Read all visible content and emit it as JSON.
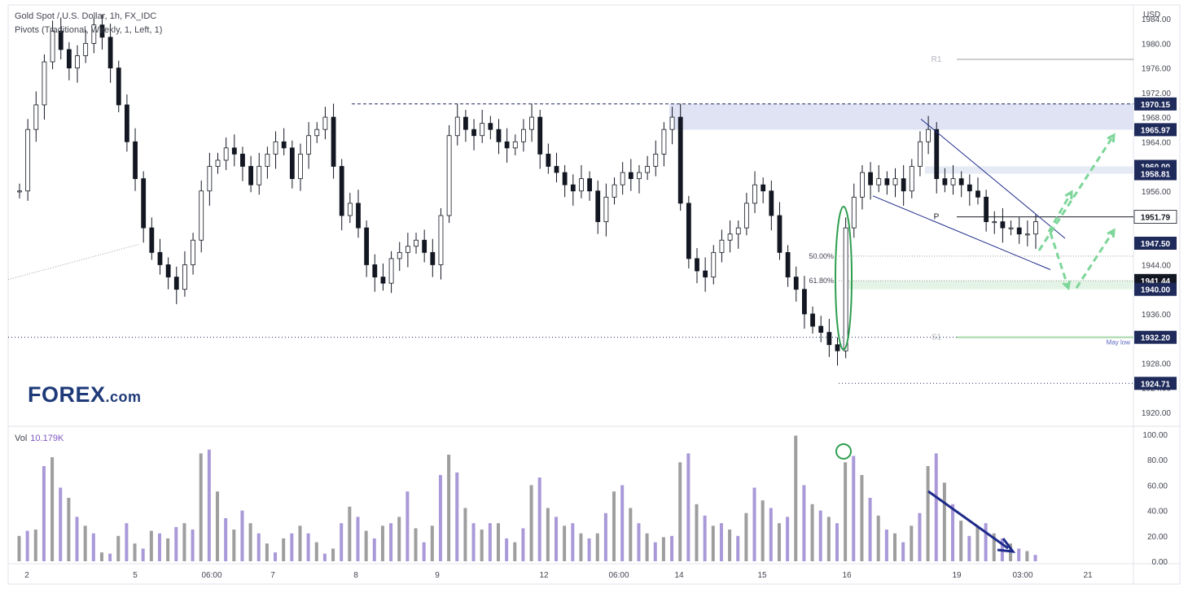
{
  "legend": {
    "symbol_line": "Gold Spot / U.S. Dollar, 1h, FX_IDC",
    "pivots_line": "Pivots (Traditional, Weekly, 1, Left, 1)",
    "volume_label": "Vol",
    "volume_value": "10.179K"
  },
  "currency": "USD",
  "logo": {
    "text": "FOREX",
    "suffix": ".com"
  },
  "chart_data": [
    {
      "type": "candlestick",
      "title": "Gold Spot / U.S. Dollar, 1h, FX_IDC",
      "ylabel": "USD",
      "ylim": [
        1918,
        1986
      ],
      "y_ticks": [
        1920,
        1924,
        1928,
        1932,
        1936,
        1940,
        1944,
        1948,
        1952,
        1956,
        1960,
        1964,
        1968,
        1972,
        1976,
        1980,
        1984
      ],
      "x_tick_labels": [
        "2",
        "5",
        "06:00",
        "7",
        "8",
        "9",
        "12",
        "06:00",
        "14",
        "15",
        "16",
        "19",
        "03:00",
        "21"
      ],
      "price_flags": [
        {
          "value": "1970.15",
          "color": "#1e2a5a"
        },
        {
          "value": "1965.97",
          "color": "#1e2a5a"
        },
        {
          "value": "1960.00",
          "color": "#1e2a5a"
        },
        {
          "value": "1958.81",
          "color": "#1e2a5a"
        },
        {
          "value": "1951.79",
          "color": "#ffffff"
        },
        {
          "value": "1947.50",
          "color": "#1e2a5a"
        },
        {
          "value": "1941.44",
          "color": "#131722"
        },
        {
          "value": "1940.00",
          "color": "#1e2a5a"
        },
        {
          "value": "1932.20",
          "color": "#1e2a5a"
        },
        {
          "value": "1924.71",
          "color": "#1e2a5a"
        }
      ],
      "pivots": [
        {
          "label": "R1",
          "value": 1977.4
        },
        {
          "label": "P",
          "value": 1951.79
        },
        {
          "label": "S1",
          "value": 1932.2
        }
      ],
      "fib_levels": [
        {
          "label": "50.00%",
          "value": 1945.4
        },
        {
          "label": "61.80%",
          "value": 1941.4
        }
      ],
      "annotations": [
        "May low"
      ],
      "zones": [
        {
          "from": 1965.97,
          "to": 1970.15,
          "color": "#dfe3f4"
        },
        {
          "from": 1958.81,
          "to": 1960.0,
          "color": "#e6eaf5"
        },
        {
          "from": 1940.0,
          "to": 1941.44,
          "color": "#e3f4e6"
        }
      ],
      "series": [
        {
          "close": [
            1956,
            1966,
            1970,
            1977,
            1982,
            1979,
            1976,
            1978,
            1980,
            1983,
            1981,
            1976,
            1970,
            1964,
            1958,
            1950,
            1946,
            1944,
            1942,
            1940,
            1944,
            1948,
            1956,
            1960,
            1961,
            1963,
            1962,
            1960,
            1957,
            1960,
            1962,
            1964,
            1963,
            1958,
            1962,
            1965,
            1966,
            1968,
            1960,
            1952,
            1954,
            1950,
            1944,
            1942,
            1941,
            1945,
            1946,
            1947,
            1948,
            1946,
            1944,
            1952,
            1965,
            1968,
            1966,
            1965,
            1967,
            1966,
            1964,
            1963,
            1964,
            1966,
            1968,
            1962,
            1960,
            1959,
            1957,
            1956,
            1958,
            1956,
            1951,
            1955,
            1957,
            1959,
            1958,
            1959,
            1960,
            1962,
            1966,
            1968,
            1954,
            1945,
            1943,
            1942,
            1946,
            1948,
            1949,
            1950,
            1954,
            1957,
            1956,
            1952,
            1946,
            1942,
            1940,
            1936,
            1934,
            1933,
            1931,
            1930,
            1950,
            1955,
            1959,
            1957,
            1958,
            1957,
            1958,
            1956,
            1960,
            1964,
            1966,
            1958,
            1957,
            1958,
            1957,
            1956,
            1955,
            1951,
            1951,
            1950,
            1950,
            1949,
            1949,
            1951
          ],
          "color_up": "#131722",
          "color_down": "#131722"
        }
      ],
      "volume": {
        "ylim": [
          0,
          100
        ],
        "y_ticks": [
          0,
          20,
          40,
          60,
          80,
          100
        ],
        "values": [
          20,
          24,
          25,
          75,
          82,
          58,
          50,
          35,
          28,
          22,
          7,
          6,
          20,
          30,
          14,
          10,
          24,
          22,
          18,
          27,
          30,
          25,
          85,
          88,
          55,
          34,
          25,
          40,
          30,
          22,
          14,
          7,
          18,
          22,
          28,
          22,
          15,
          6,
          10,
          30,
          43,
          35,
          24,
          18,
          28,
          30,
          35,
          55,
          26,
          15,
          28,
          68,
          84,
          70,
          42,
          30,
          25,
          30,
          30,
          18,
          15,
          26,
          60,
          66,
          42,
          35,
          28,
          30,
          22,
          18,
          22,
          38,
          55,
          60,
          42,
          30,
          22,
          15,
          19,
          20,
          78,
          85,
          45,
          36,
          28,
          30,
          25,
          20,
          38,
          58,
          48,
          42,
          30,
          35,
          99,
          60,
          45,
          40,
          35,
          30,
          78,
          83,
          68,
          50,
          36,
          25,
          22,
          15,
          28,
          38,
          75,
          85,
          62,
          45,
          32,
          20,
          28,
          30,
          22,
          18,
          14,
          10,
          8,
          5
        ],
        "colors": [
          "#9e9e9e",
          "#a999d8"
        ]
      }
    }
  ]
}
